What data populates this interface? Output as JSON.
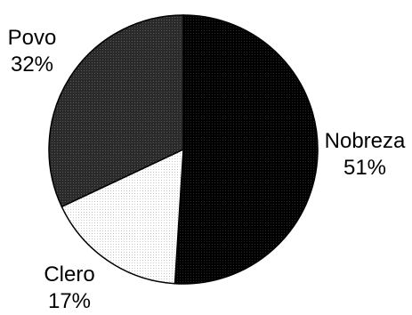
{
  "chart_data": {
    "type": "pie",
    "slices": [
      {
        "label": "Nobreza",
        "value": 51,
        "value_label": "51%",
        "color": "#0b0b0b",
        "pattern": "dotted-dark"
      },
      {
        "label": "Clero",
        "value": 17,
        "value_label": "17%",
        "color": "#ffffff",
        "pattern": "dotted-light"
      },
      {
        "label": "Povo",
        "value": 32,
        "value_label": "32%",
        "color": "#2e2e2e",
        "pattern": "dotted-gray"
      }
    ],
    "start": "top",
    "direction": "clockwise",
    "legend": "none"
  }
}
